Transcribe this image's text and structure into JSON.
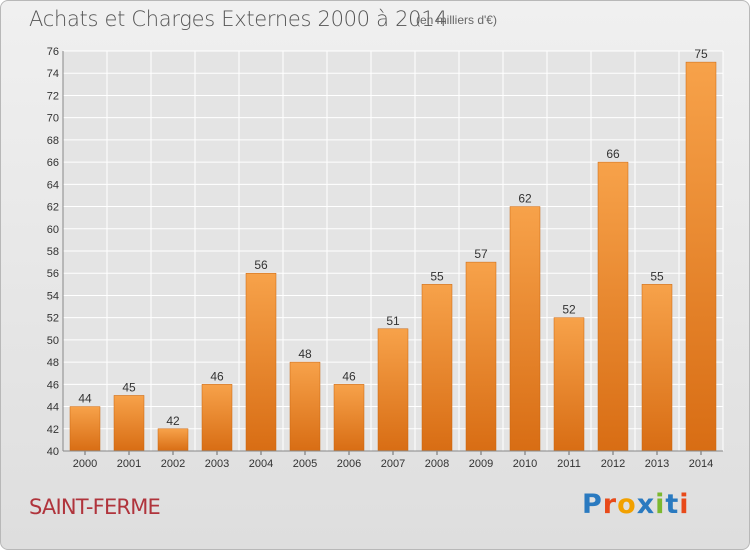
{
  "title": "Achats et Charges Externes 2000 à 2014",
  "subtitle": "(en milliers d'€)",
  "location": "SAINT-FERME",
  "logo": {
    "text": "Proxiti",
    "letter_colors": [
      "#2a7ac0",
      "#e84a1a",
      "#f2a100",
      "#2a7ac0",
      "#7cb82f",
      "#2a7ac0",
      "#e84a1a"
    ]
  },
  "colors": {
    "bar_light": "#f7a24a",
    "bar_dark": "#d86d14",
    "bar_edge": "#c8640f",
    "grid": "#ffffff",
    "axis_text": "#333333",
    "location": "#b0343c"
  },
  "chart_data": {
    "type": "bar",
    "categories": [
      "2000",
      "2001",
      "2002",
      "2003",
      "2004",
      "2005",
      "2006",
      "2007",
      "2008",
      "2009",
      "2010",
      "2011",
      "2012",
      "2013",
      "2014"
    ],
    "values": [
      44,
      45,
      42,
      46,
      56,
      48,
      46,
      51,
      55,
      57,
      62,
      52,
      66,
      55,
      75
    ],
    "data_labels": [
      "44",
      "45",
      "42",
      "46",
      "56",
      "48",
      "46",
      "51",
      "55",
      "57",
      "62",
      "52",
      "66",
      "55",
      "75"
    ],
    "y_ticks": [
      40,
      42,
      44,
      46,
      48,
      50,
      52,
      54,
      56,
      58,
      60,
      62,
      64,
      66,
      68,
      70,
      72,
      74,
      76
    ],
    "ylim": [
      40,
      76
    ],
    "grid": true,
    "xlabel": "",
    "ylabel": ""
  }
}
